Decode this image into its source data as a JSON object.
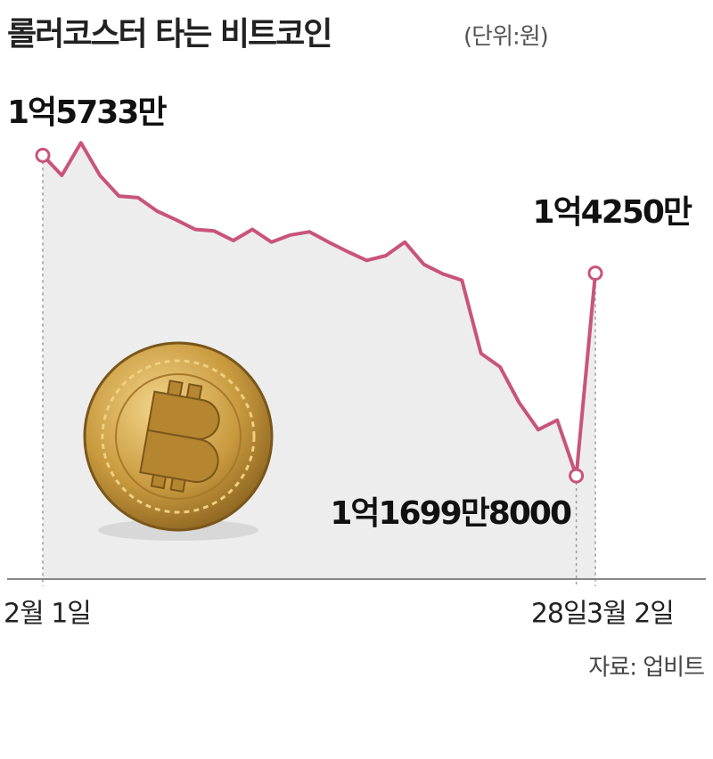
{
  "chart_data": {
    "type": "line",
    "title": "롤러코스터 타는 비트코인",
    "subtitle": "(단위:원)",
    "source": "자료: 업비트",
    "categories": [
      "2월 1일",
      null,
      null,
      null,
      null,
      null,
      null,
      null,
      null,
      null,
      null,
      null,
      null,
      null,
      null,
      null,
      null,
      null,
      null,
      null,
      null,
      null,
      null,
      null,
      null,
      null,
      null,
      null,
      "28일",
      "3월 2일"
    ],
    "series": [
      {
        "name": "비트코인",
        "color": "#c9547a",
        "values": [
          157330000,
          154800000,
          158900000,
          154800000,
          152200000,
          152000000,
          150300000,
          149200000,
          148000000,
          147800000,
          146600000,
          148000000,
          146400000,
          147300000,
          147700000,
          146400000,
          145200000,
          144100000,
          144700000,
          146400000,
          143600000,
          142400000,
          141600000,
          132400000,
          130700000,
          126200000,
          122800000,
          124000000,
          116998000,
          142500000
        ],
        "value_labels": [
          "1억5733만",
          null,
          null,
          null,
          null,
          null,
          null,
          null,
          null,
          null,
          null,
          null,
          null,
          null,
          null,
          null,
          null,
          null,
          null,
          null,
          null,
          null,
          null,
          null,
          null,
          null,
          null,
          null,
          "1억1699만8000",
          "1억4250만"
        ]
      }
    ],
    "ylim": [
      104000000,
      166000000
    ],
    "area_color": "#ededed"
  }
}
